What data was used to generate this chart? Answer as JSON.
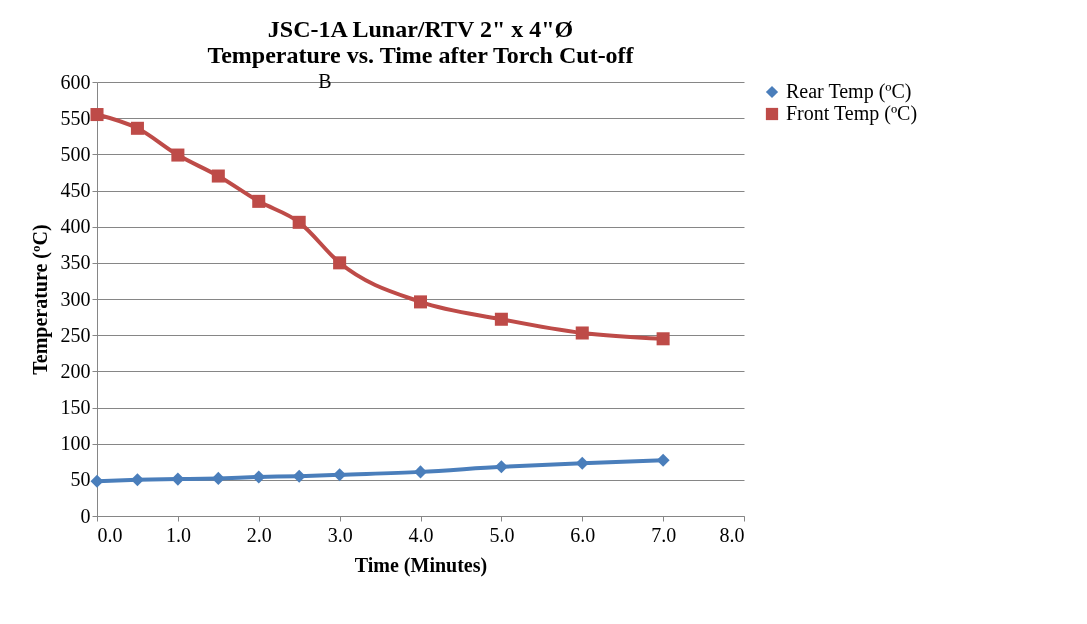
{
  "chart_data": {
    "type": "line",
    "title": [
      "JSC-1A Lunar/RTV 2\" x 4\"Ø",
      "Temperature vs. Time after Torch Cut-off"
    ],
    "xlabel": "Time (Minutes)",
    "ylabel": "Temperature (ºC)",
    "x": [
      0,
      0.5,
      1,
      1.5,
      2,
      2.5,
      3,
      4,
      5,
      6,
      7
    ],
    "series": [
      {
        "name": "Rear Temp (ºC)",
        "color": "#4a7ebb",
        "marker": "diamond",
        "values": [
          48,
          50,
          51,
          52,
          54,
          55,
          57,
          61,
          68,
          73,
          77
        ]
      },
      {
        "name": "Front Temp (ºC)",
        "color": "#be4b48",
        "marker": "square",
        "values": [
          555,
          536,
          499,
          470,
          435,
          406,
          350,
          296,
          272,
          253,
          245
        ]
      }
    ],
    "xlim": [
      0,
      8
    ],
    "xticks": [
      {
        "value": 0,
        "label": "0.0"
      },
      {
        "value": 1,
        "label": "1.0"
      },
      {
        "value": 2,
        "label": "2.0"
      },
      {
        "value": 3,
        "label": "3.0"
      },
      {
        "value": 4,
        "label": "4.0"
      },
      {
        "value": 5,
        "label": "5.0"
      },
      {
        "value": 6,
        "label": "6.0"
      },
      {
        "value": 7,
        "label": "7.0"
      },
      {
        "value": 8,
        "label": "8.0"
      }
    ],
    "ylim": [
      0,
      600
    ],
    "yticks": [
      0,
      50,
      100,
      150,
      200,
      250,
      300,
      350,
      400,
      450,
      500,
      550,
      600
    ],
    "grid": "y",
    "legend": "right",
    "line_style": "solid",
    "annotations": [
      "B"
    ]
  }
}
